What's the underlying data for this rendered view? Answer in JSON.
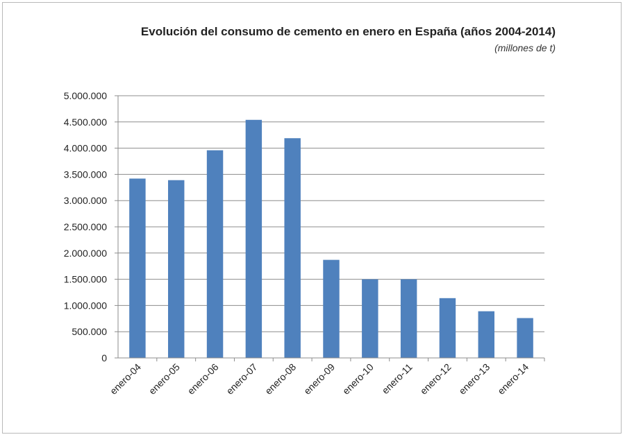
{
  "chart_data": {
    "type": "bar",
    "title": "Evolución del consumo de cemento en enero en España (años 2004-2014)",
    "subtitle": "(millones de t)",
    "xlabel": "",
    "ylabel": "",
    "categories": [
      "enero-04",
      "enero-05",
      "enero-06",
      "enero-07",
      "enero-08",
      "enero-09",
      "enero-10",
      "enero-11",
      "enero-12",
      "enero-13",
      "enero-14"
    ],
    "values": [
      3420000,
      3390000,
      3960000,
      4540000,
      4190000,
      1870000,
      1500000,
      1500000,
      1140000,
      890000,
      760000
    ],
    "ylim": [
      0,
      5000000
    ],
    "yticks": [
      0,
      500000,
      1000000,
      1500000,
      2000000,
      2500000,
      3000000,
      3500000,
      4000000,
      4500000,
      5000000
    ],
    "ytick_labels": [
      "0",
      "500.000",
      "1.000.000",
      "1.500.000",
      "2.000.000",
      "2.500.000",
      "3.000.000",
      "3.500.000",
      "4.000.000",
      "4.500.000",
      "5.000.000"
    ],
    "grid": true,
    "legend": false,
    "bar_color": "#4f81bd",
    "grid_color": "#8c8c8c"
  }
}
